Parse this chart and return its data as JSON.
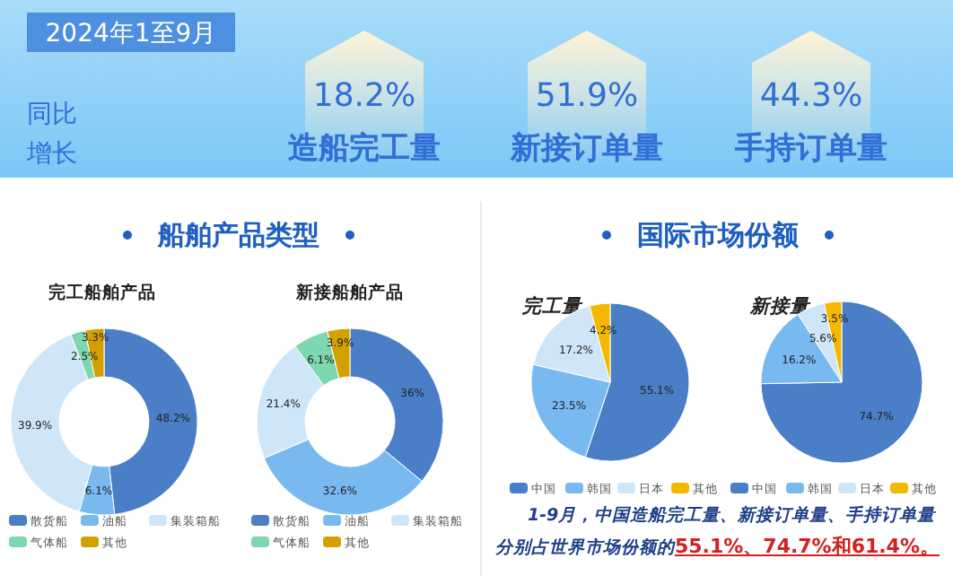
{
  "chart_data": [
    {
      "type": "other",
      "title": "2024年1至9月",
      "subtitle": "同比增长",
      "categories": [
        "造船完工量",
        "新接订单量",
        "手持订单量"
      ],
      "value_labels": [
        "18.2%",
        "51.9%",
        "44.3%"
      ]
    },
    {
      "type": "donut",
      "subtitle": "船舶产品类型",
      "title": "完工船舶产品",
      "categories": [
        "散货船",
        "油船",
        "集装箱船",
        "气体船",
        "其他"
      ],
      "values": [
        48.2,
        6.1,
        39.9,
        2.5,
        3.3
      ],
      "value_labels": [
        "48.2%",
        "6.1%",
        "39.9%",
        "2.5%",
        "3.3%"
      ],
      "colors": [
        "#4a7ec6",
        "#78b9f0",
        "#cfe6f9",
        "#7dd8b0",
        "#d4a000"
      ],
      "legend": "bottom"
    },
    {
      "type": "donut",
      "title": "新接船舶产品",
      "categories": [
        "散货船",
        "油船",
        "集装箱船",
        "气体船",
        "其他"
      ],
      "values": [
        36,
        32.6,
        21.4,
        6.1,
        3.9
      ],
      "value_labels": [
        "36%",
        "32.6%",
        "21.4%",
        "6.1%",
        "3.9%"
      ],
      "colors": [
        "#4a7ec6",
        "#78b9f0",
        "#cfe6f9",
        "#7dd8b0",
        "#d4a000"
      ],
      "legend": "bottom"
    },
    {
      "type": "pie",
      "subtitle": "国际市场份额",
      "title": "完工量",
      "categories": [
        "中国",
        "韩国",
        "日本",
        "其他"
      ],
      "values": [
        55.1,
        23.5,
        17.2,
        4.2
      ],
      "value_labels": [
        "55.1%",
        "23.5%",
        "17.2%",
        "4.2%"
      ],
      "colors": [
        "#4a7ec6",
        "#78b9f0",
        "#cfe6f9",
        "#f5b800"
      ],
      "legend": "bottom"
    },
    {
      "type": "pie",
      "title": "新接量",
      "categories": [
        "中国",
        "韩国",
        "日本",
        "其他"
      ],
      "values": [
        74.7,
        16.2,
        5.6,
        3.5
      ],
      "value_labels": [
        "74.7%",
        "16.2%",
        "5.6%",
        "3.5%"
      ],
      "colors": [
        "#4a7ec6",
        "#78b9f0",
        "#cfe6f9",
        "#f5b800"
      ],
      "legend": "bottom",
      "annotations": [
        "1-9月，中国造船完工量、新接订单量、手持订单量分别占世界市场份额的",
        "55.1%、74.7%和61.4%。"
      ]
    }
  ]
}
